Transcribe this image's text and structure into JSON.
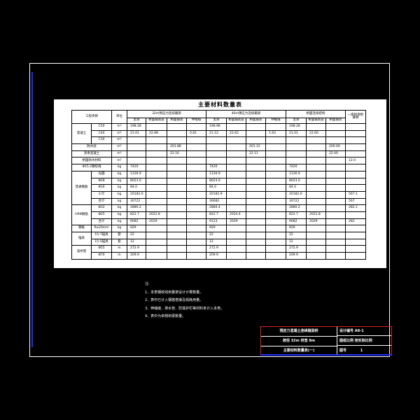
{
  "table": {
    "title": "主要材料数量表",
    "header": {
      "project": "工程项目",
      "unit": "单位",
      "groups": [
        "32m预应力连续箱梁",
        "40m预应力连续箱梁",
        "桥面连续结构"
      ],
      "extra": "一座桥梁附属物",
      "sub1": [
        "主梁",
        "桥面铺装层",
        "桥面铺装",
        "伸缩缝"
      ],
      "sub2": [
        "主梁",
        "桥面铺装层",
        "桥面铺装",
        "伸缩缝"
      ],
      "sub3": [
        "主梁",
        "桥面铺装层",
        "桥面铺装"
      ]
    },
    "rows": [
      {
        "group": "混凝土",
        "sub": "C50",
        "unit": "m³",
        "v": [
          "198.28",
          "",
          "",
          "",
          "198.98",
          "",
          "",
          "",
          "198.28",
          "",
          "",
          ""
        ]
      },
      {
        "group": "",
        "sub": "C40",
        "unit": "m³",
        "v": [
          "21.01",
          "22.88",
          "",
          "0.81",
          "21.12",
          "22.62",
          "",
          "1.63",
          "21.01",
          "22.60",
          "",
          ""
        ]
      },
      {
        "group": "",
        "sub": "C30",
        "unit": "m³",
        "v": [
          "",
          "",
          "",
          "",
          "",
          "",
          "",
          "",
          "",
          "",
          "",
          ""
        ]
      },
      {
        "group": "防水层",
        "sub": "",
        "unit": "m²",
        "v": [
          "",
          "",
          "201.88",
          "",
          "",
          "",
          "201.12",
          "",
          "",
          "",
          "200.00",
          ""
        ]
      },
      {
        "group": "沥青混凝土",
        "sub": "",
        "unit": "m³",
        "v": [
          "",
          "",
          "22.16",
          "",
          "",
          "",
          "22.11",
          "",
          "",
          "",
          "22.00",
          ""
        ]
      },
      {
        "group": "桥面防水材料",
        "sub": "",
        "unit": "m²",
        "v": [
          "",
          "",
          "",
          "",
          "",
          "",
          "",
          "",
          "",
          "",
          "",
          "12.0"
        ]
      },
      {
        "group": "Φ15.2钢绞线",
        "sub": "",
        "unit": "kg",
        "v": [
          "7420",
          "",
          "",
          "",
          "7420",
          "",
          "",
          "",
          "7420",
          "",
          "",
          ""
        ]
      },
      {
        "group": "普通钢筋",
        "sub": "光圆",
        "unit": "kg",
        "v": [
          "1126.9",
          "",
          "",
          "",
          "1126.9",
          "",
          "",
          "",
          "1126.9",
          "",
          "",
          ""
        ]
      },
      {
        "group": "",
        "sub": "Φ28",
        "unit": "kg",
        "v": [
          "8023.0",
          "",
          "",
          "",
          "8023.0",
          "",
          "",
          "",
          "8023.0",
          "",
          "",
          ""
        ]
      },
      {
        "group": "",
        "sub": "Φ16",
        "unit": "kg",
        "v": [
          "84.0",
          "",
          "",
          "",
          "84.0",
          "",
          "",
          "",
          "84.0",
          "",
          "",
          ""
        ]
      },
      {
        "group": "",
        "sub": "小计",
        "unit": "kg",
        "v": [
          "20182.0",
          "",
          "",
          "",
          "20182.9",
          "",
          "",
          "",
          "20182.0",
          "",
          "",
          "567.1"
        ]
      },
      {
        "group": "",
        "sub": "合计",
        "unit": "kg",
        "v": [
          "30722",
          "",
          "",
          "",
          "30682",
          "",
          "",
          "",
          "30722",
          "",
          "",
          "567"
        ]
      },
      {
        "group": "HRB钢筋",
        "sub": "Φ32",
        "unit": "kg",
        "v": [
          "2880.2",
          "",
          "",
          "",
          "2884.4",
          "",
          "",
          "",
          "2880.2",
          "",
          "",
          "282.1"
        ]
      },
      {
        "group": "",
        "sub": "Φ25",
        "unit": "kg",
        "v": [
          "822.7",
          "2022.8",
          "",
          "",
          "822.7",
          "2024.4",
          "",
          "",
          "822.7",
          "2022.8",
          "",
          ""
        ]
      },
      {
        "group": "",
        "sub": "合计",
        "unit": "kg",
        "v": [
          "9082",
          "2029",
          "",
          "",
          "9123",
          "2029",
          "",
          "",
          "9082",
          "2029",
          "",
          "282"
        ]
      },
      {
        "group": "钢板",
        "sub": "δ≥20mm",
        "unit": "kg",
        "v": [
          "929",
          "",
          "",
          "",
          "929",
          "",
          "",
          "",
          "929",
          "",
          "",
          ""
        ]
      },
      {
        "group": "锚具",
        "sub": "15-7锚具",
        "unit": "套",
        "v": [
          "22",
          "",
          "",
          "",
          "22",
          "",
          "",
          "",
          "22",
          "",
          "",
          ""
        ]
      },
      {
        "group": "",
        "sub": "15-5锚具",
        "unit": "套",
        "v": [
          "12",
          "",
          "",
          "",
          "12",
          "",
          "",
          "",
          "12",
          "",
          "",
          ""
        ]
      },
      {
        "group": "波纹管",
        "sub": "Φ55",
        "unit": "m",
        "v": [
          "272.9",
          "",
          "",
          "",
          "272.9",
          "",
          "",
          "",
          "272.9",
          "",
          "",
          ""
        ]
      },
      {
        "group": "",
        "sub": "Φ70",
        "unit": "m",
        "v": [
          "209.9",
          "",
          "",
          "",
          "209.9",
          "",
          "",
          "",
          "209.9",
          "",
          "",
          ""
        ]
      }
    ]
  },
  "notes": {
    "heading": "注:",
    "items": [
      "1、本表钢绞线用量按设计计算数量。",
      "2、表中已计入钢筋搭接及损耗用量。",
      "3、伸缩缝、排水管、防撞护栏等材料未计入本表。",
      "4、表中为单侧桥梁数量。"
    ]
  },
  "title_block": {
    "line1": "预应力混凝土连续箱梁桥",
    "line2": "跨径 32m 桥宽 8m",
    "line3": "主要材料数量表(一)",
    "design_no_label": "设计编号",
    "design_no": "A8-1",
    "scale_label": "图纸比例",
    "scale": "按实际比例",
    "sheet_label": "图号",
    "sheet": "1"
  },
  "colors": {
    "background": "#000000",
    "paper": "#ffffff",
    "frame": "#ffffff",
    "accent_blue": "#1a2cff",
    "title_block_red": "#e02020"
  }
}
